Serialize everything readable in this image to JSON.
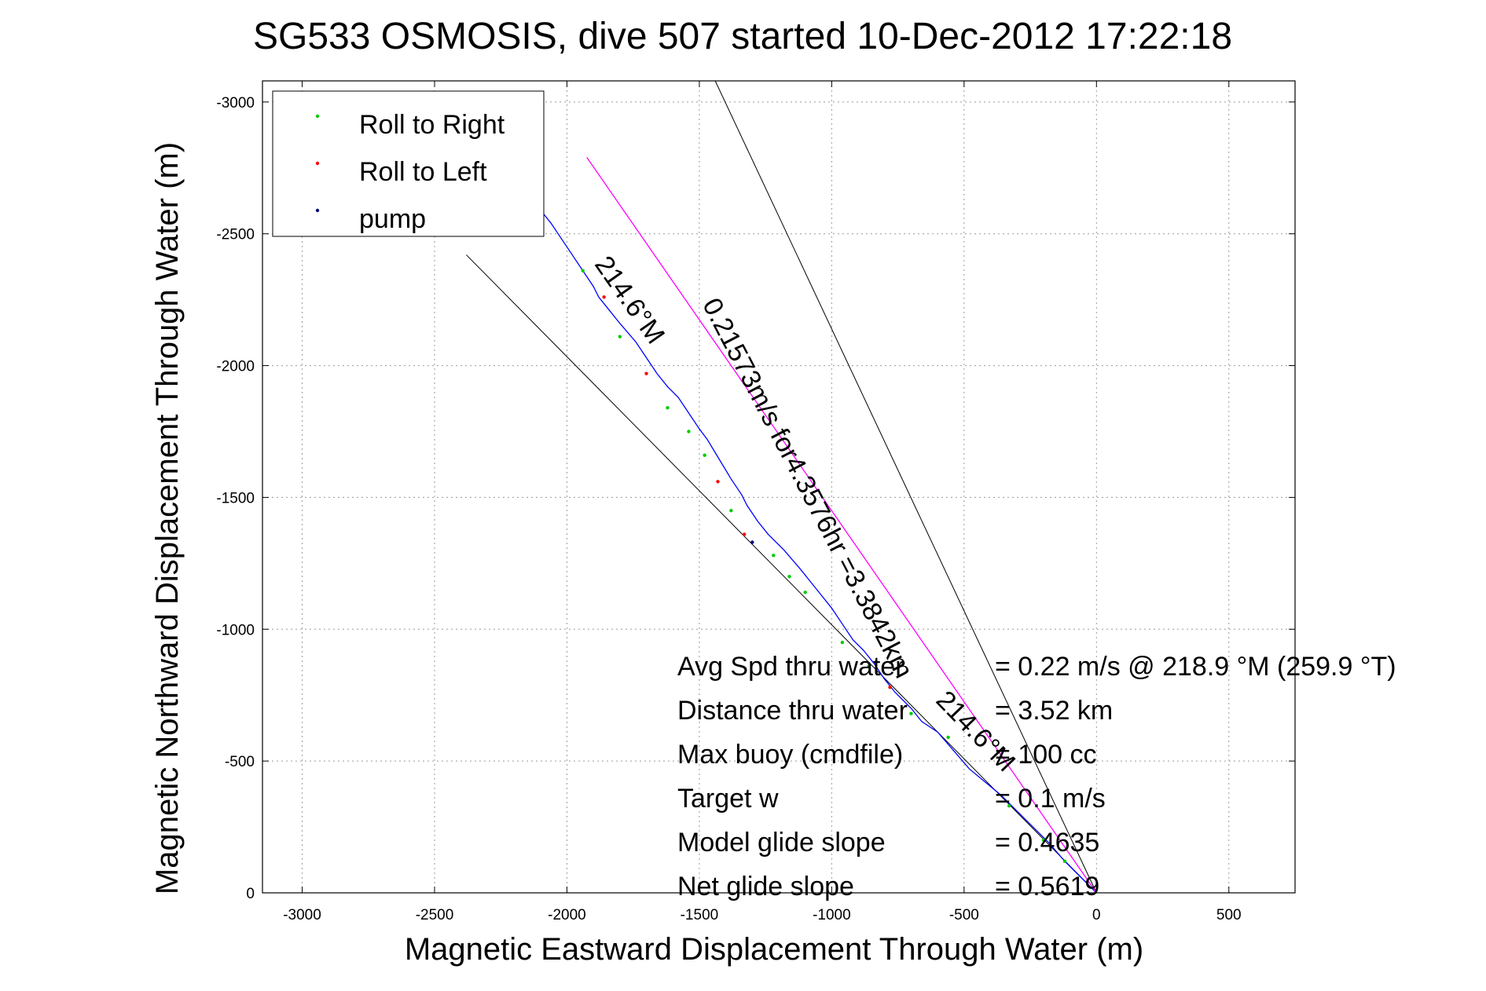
{
  "chart_data": {
    "type": "line",
    "title": "SG533 OSMOSIS, dive 507 started 10-Dec-2012 17:22:18",
    "xlabel": "Magnetic Eastward Displacement Through Water (m)",
    "ylabel": "Magnetic Northward Displacement Through Water (m)",
    "xlim": [
      -3150,
      750
    ],
    "ylim": [
      -3080,
      0
    ],
    "xticks": [
      -3000,
      -2500,
      -2000,
      -1500,
      -1000,
      -500,
      0,
      500
    ],
    "yticks": [
      0,
      -500,
      -1000,
      -1500,
      -2000,
      -2500,
      -3000
    ],
    "grid": true,
    "legend_position": "top-left",
    "legend": [
      {
        "label": "Roll to Right",
        "color": "#00cc00"
      },
      {
        "label": "Roll to Left",
        "color": "#ff0000"
      },
      {
        "label": "pump",
        "color": "#000080"
      }
    ],
    "series": [
      {
        "line_color": "#0000ff",
        "x": [
          0,
          -60,
          -120,
          -180,
          -240,
          -300,
          -360,
          -420,
          -480,
          -540,
          -600,
          -660,
          -700,
          -760,
          -800,
          -840,
          -880,
          -920,
          -960,
          -1000,
          -1040,
          -1080,
          -1120,
          -1180,
          -1240,
          -1280,
          -1320,
          -1340,
          -1380,
          -1410,
          -1440,
          -1470,
          -1500,
          -1540,
          -1580,
          -1620,
          -1660,
          -1700,
          -1740,
          -1800,
          -1840,
          -1880,
          -1900,
          -1940,
          -1980,
          -2020,
          -2060,
          -2100,
          -2140,
          -2180,
          -2200,
          -2220
        ],
        "y": [
          0,
          -60,
          -120,
          -190,
          -250,
          -310,
          -370,
          -420,
          -470,
          -540,
          -610,
          -650,
          -700,
          -760,
          -810,
          -870,
          -920,
          -960,
          -1020,
          -1080,
          -1130,
          -1180,
          -1230,
          -1300,
          -1360,
          -1410,
          -1470,
          -1510,
          -1570,
          -1620,
          -1670,
          -1720,
          -1760,
          -1820,
          -1880,
          -1920,
          -1970,
          -2030,
          -2090,
          -2160,
          -2210,
          -2260,
          -2300,
          -2360,
          -2420,
          -2480,
          -2540,
          -2590,
          -2640,
          -2690,
          -2720,
          -2740
        ]
      },
      {
        "line_color": "#ff00ff",
        "x": [
          0,
          -1925
        ],
        "y": [
          0,
          -2790
        ]
      }
    ],
    "reference_lines": [
      {
        "x": [
          0,
          -2380
        ],
        "y": [
          0,
          -2420
        ]
      },
      {
        "x": [
          0,
          -1440
        ],
        "y": [
          0,
          -3080
        ]
      }
    ],
    "markers": [
      {
        "x": -120,
        "y": -120,
        "color": "#00cc00"
      },
      {
        "x": -200,
        "y": -200,
        "color": "#00cc00"
      },
      {
        "x": -330,
        "y": -330,
        "color": "#00cc00"
      },
      {
        "x": -560,
        "y": -590,
        "color": "#00cc00"
      },
      {
        "x": -700,
        "y": -680,
        "color": "#00cc00"
      },
      {
        "x": -780,
        "y": -780,
        "color": "#ff0000"
      },
      {
        "x": -860,
        "y": -860,
        "color": "#00cc00"
      },
      {
        "x": -960,
        "y": -950,
        "color": "#00cc00"
      },
      {
        "x": -1100,
        "y": -1140,
        "color": "#00cc00"
      },
      {
        "x": -1160,
        "y": -1200,
        "color": "#00cc00"
      },
      {
        "x": -1220,
        "y": -1280,
        "color": "#00cc00"
      },
      {
        "x": -1300,
        "y": -1330,
        "color": "#000080"
      },
      {
        "x": -1330,
        "y": -1360,
        "color": "#ff0000"
      },
      {
        "x": -1380,
        "y": -1450,
        "color": "#00cc00"
      },
      {
        "x": -1430,
        "y": -1560,
        "color": "#ff0000"
      },
      {
        "x": -1480,
        "y": -1660,
        "color": "#00cc00"
      },
      {
        "x": -1540,
        "y": -1750,
        "color": "#00cc00"
      },
      {
        "x": -1620,
        "y": -1840,
        "color": "#00cc00"
      },
      {
        "x": -1700,
        "y": -1970,
        "color": "#ff0000"
      },
      {
        "x": -1800,
        "y": -2110,
        "color": "#00cc00"
      },
      {
        "x": -1860,
        "y": -2260,
        "color": "#ff0000"
      },
      {
        "x": -1940,
        "y": -2360,
        "color": "#00cc00"
      },
      {
        "x": -2120,
        "y": -2610,
        "color": "#00cc00"
      },
      {
        "x": -2170,
        "y": -2650,
        "color": "#ff0000"
      },
      {
        "x": -2200,
        "y": -2710,
        "color": "#00cc00"
      }
    ],
    "annotations": [
      {
        "text": "0.21573m/s for4.3576hr =3.3842km",
        "x": -1120,
        "y": -1520,
        "angle": 62.5
      },
      {
        "text": "214.6°M",
        "x": -480,
        "y": -590,
        "angle": 46
      },
      {
        "text": "214.6°M",
        "x": -1790,
        "y": -2230,
        "angle": 55
      }
    ],
    "stats": [
      {
        "label": "Avg Spd thru water",
        "value": "=  0.22 m/s @ 218.9 °M (259.9 °T)"
      },
      {
        "label": "Distance thru water",
        "value": "=  3.52 km"
      },
      {
        "label": "Max buoy (cmdfile)",
        "value": "= 100 cc"
      },
      {
        "label": "Target w",
        "value": "= 0.1 m/s"
      },
      {
        "label": "Model glide slope",
        "value": "= 0.4635"
      },
      {
        "label": "Net glide slope",
        "value": "= 0.5619"
      }
    ]
  }
}
